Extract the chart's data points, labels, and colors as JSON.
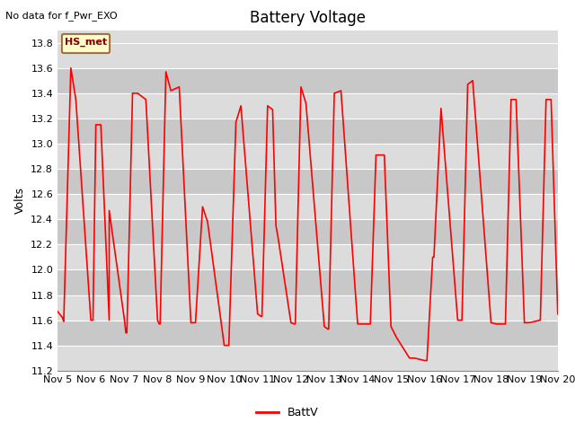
{
  "title": "Battery Voltage",
  "top_left_text": "No data for f_Pwr_EXO",
  "ylabel": "Volts",
  "ylim": [
    11.2,
    13.9
  ],
  "yticks": [
    11.2,
    11.4,
    11.6,
    11.8,
    12.0,
    12.2,
    12.4,
    12.6,
    12.8,
    13.0,
    13.2,
    13.4,
    13.6,
    13.8
  ],
  "line_color": "#FF0000",
  "line_width": 1.2,
  "bg_color": "#DCDCDC",
  "fig_bg_color": "#FFFFFF",
  "legend_label": "BattV",
  "legend_box_label": "HS_met",
  "legend_box_facecolor": "#FFFFCC",
  "legend_box_edgecolor": "#996633",
  "title_fontsize": 12,
  "label_fontsize": 9,
  "tick_fontsize": 8,
  "x_start": 5,
  "x_end": 20,
  "xtick_labels": [
    "Nov 5",
    "Nov 6",
    "Nov 7",
    "Nov 8",
    "Nov 9",
    "Nov 10",
    "Nov 11",
    "Nov 12",
    "Nov 13",
    "Nov 14",
    "Nov 15",
    "Nov 16",
    "Nov 17",
    "Nov 18",
    "Nov 19",
    "Nov 20"
  ],
  "xtick_positions": [
    5,
    6,
    7,
    8,
    9,
    10,
    11,
    12,
    13,
    14,
    15,
    16,
    17,
    18,
    19,
    20
  ],
  "cycles": [
    [
      5.0,
      5.15,
      11.67,
      11.67,
      11.62,
      0.0
    ],
    [
      5.15,
      5.4,
      11.62,
      13.6,
      11.59,
      0.85
    ],
    [
      5.4,
      5.55,
      13.6,
      13.35,
      13.35,
      0.0
    ],
    [
      5.55,
      6.0,
      13.35,
      11.6,
      11.6,
      0.0
    ],
    [
      6.0,
      6.05,
      11.6,
      11.6,
      11.6,
      0.0
    ],
    [
      6.05,
      6.15,
      11.6,
      13.15,
      11.6,
      0.85
    ],
    [
      6.15,
      6.3,
      13.15,
      13.15,
      13.15,
      0.0
    ],
    [
      6.3,
      6.55,
      13.15,
      12.47,
      11.6,
      0.0
    ],
    [
      6.55,
      7.0,
      12.47,
      11.62,
      11.62,
      0.0
    ],
    [
      7.0,
      7.05,
      11.62,
      11.5,
      11.5,
      0.0
    ],
    [
      7.05,
      7.25,
      11.5,
      13.4,
      11.5,
      0.85
    ],
    [
      7.25,
      7.4,
      13.4,
      13.4,
      13.4,
      0.0
    ],
    [
      7.4,
      7.65,
      13.4,
      13.35,
      13.35,
      0.0
    ],
    [
      7.65,
      8.0,
      13.35,
      11.6,
      11.6,
      0.0
    ],
    [
      8.0,
      8.05,
      11.6,
      11.57,
      11.57,
      0.0
    ],
    [
      8.05,
      8.25,
      11.57,
      13.57,
      11.57,
      0.85
    ],
    [
      8.25,
      8.4,
      13.57,
      13.42,
      13.42,
      0.0
    ],
    [
      8.4,
      8.65,
      13.42,
      13.45,
      13.45,
      0.0
    ],
    [
      8.65,
      9.0,
      13.45,
      11.58,
      11.58,
      0.0
    ],
    [
      9.0,
      9.1,
      11.58,
      11.58,
      11.58,
      0.0
    ],
    [
      9.1,
      9.35,
      11.58,
      12.5,
      11.58,
      0.85
    ],
    [
      9.35,
      9.5,
      12.5,
      12.38,
      12.38,
      0.0
    ],
    [
      9.5,
      10.0,
      12.38,
      11.4,
      11.4,
      0.0
    ],
    [
      10.0,
      10.1,
      11.4,
      11.4,
      11.4,
      0.0
    ],
    [
      10.1,
      10.35,
      11.4,
      13.17,
      11.4,
      0.85
    ],
    [
      10.35,
      10.5,
      13.17,
      13.3,
      13.3,
      0.0
    ],
    [
      10.5,
      11.0,
      13.3,
      11.65,
      11.65,
      0.0
    ],
    [
      11.0,
      11.1,
      11.65,
      11.63,
      11.63,
      0.0
    ],
    [
      11.1,
      11.3,
      11.63,
      13.3,
      11.63,
      0.85
    ],
    [
      11.3,
      11.45,
      13.3,
      13.27,
      13.27,
      0.0
    ],
    [
      11.45,
      11.55,
      13.27,
      12.35,
      12.35,
      0.0
    ],
    [
      11.55,
      11.6,
      12.35,
      12.28,
      12.28,
      0.0
    ],
    [
      11.6,
      12.0,
      12.28,
      11.58,
      11.58,
      0.0
    ],
    [
      12.0,
      12.1,
      11.58,
      11.57,
      11.57,
      0.0
    ],
    [
      12.1,
      12.3,
      11.57,
      13.45,
      11.57,
      0.85
    ],
    [
      12.3,
      12.45,
      13.45,
      13.32,
      13.32,
      0.0
    ],
    [
      12.45,
      13.0,
      13.32,
      11.55,
      11.55,
      0.0
    ],
    [
      13.0,
      13.1,
      11.55,
      11.53,
      11.53,
      0.0
    ],
    [
      13.1,
      13.3,
      11.53,
      13.4,
      11.53,
      0.85
    ],
    [
      13.3,
      13.5,
      13.4,
      13.42,
      13.42,
      0.0
    ],
    [
      13.5,
      14.0,
      13.42,
      11.57,
      11.57,
      0.0
    ],
    [
      14.0,
      14.15,
      11.57,
      11.57,
      11.57,
      0.0
    ],
    [
      14.15,
      14.35,
      11.57,
      11.57,
      11.57,
      0.0
    ],
    [
      14.35,
      14.55,
      11.57,
      12.91,
      11.57,
      0.85
    ],
    [
      14.55,
      14.8,
      12.91,
      12.91,
      12.91,
      0.0
    ],
    [
      14.8,
      15.0,
      12.91,
      11.55,
      11.55,
      0.0
    ],
    [
      15.0,
      15.15,
      11.55,
      11.47,
      11.47,
      0.0
    ],
    [
      15.15,
      15.55,
      11.47,
      11.47,
      11.3,
      0.0
    ],
    [
      15.55,
      15.7,
      11.3,
      11.3,
      11.3,
      0.0
    ],
    [
      15.7,
      16.0,
      11.3,
      11.3,
      11.28,
      0.0
    ],
    [
      16.0,
      16.05,
      11.28,
      11.28,
      11.28,
      0.0
    ],
    [
      16.05,
      16.25,
      11.28,
      12.1,
      11.28,
      0.85
    ],
    [
      16.25,
      16.5,
      12.1,
      13.28,
      12.1,
      0.85
    ],
    [
      16.5,
      17.0,
      13.28,
      11.6,
      11.6,
      0.0
    ],
    [
      17.0,
      17.1,
      11.6,
      11.6,
      11.6,
      0.0
    ],
    [
      17.1,
      17.3,
      11.6,
      13.47,
      11.6,
      0.85
    ],
    [
      17.3,
      17.45,
      13.47,
      13.5,
      13.5,
      0.0
    ],
    [
      17.45,
      18.0,
      13.5,
      11.58,
      11.58,
      0.0
    ],
    [
      18.0,
      18.15,
      11.58,
      11.57,
      11.57,
      0.0
    ],
    [
      18.15,
      18.4,
      11.57,
      11.57,
      11.57,
      0.0
    ],
    [
      18.4,
      18.6,
      11.57,
      13.35,
      11.57,
      0.85
    ],
    [
      18.6,
      18.75,
      13.35,
      13.35,
      13.35,
      0.0
    ],
    [
      18.75,
      19.0,
      13.35,
      11.58,
      11.58,
      0.0
    ],
    [
      19.0,
      19.15,
      11.58,
      11.58,
      11.58,
      0.0
    ],
    [
      19.15,
      19.45,
      11.58,
      11.58,
      11.6,
      0.0
    ],
    [
      19.45,
      19.65,
      11.6,
      13.35,
      11.6,
      0.85
    ],
    [
      19.65,
      19.8,
      13.35,
      13.35,
      13.35,
      0.0
    ],
    [
      19.8,
      20.0,
      13.35,
      11.65,
      11.65,
      0.0
    ]
  ]
}
